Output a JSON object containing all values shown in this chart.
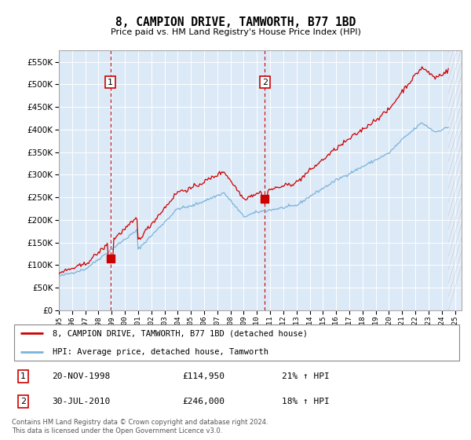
{
  "title": "8, CAMPION DRIVE, TAMWORTH, B77 1BD",
  "subtitle": "Price paid vs. HM Land Registry's House Price Index (HPI)",
  "ylim": [
    0,
    575000
  ],
  "yticks": [
    0,
    50000,
    100000,
    150000,
    200000,
    250000,
    300000,
    350000,
    400000,
    450000,
    500000,
    550000
  ],
  "background_color": "#ffffff",
  "plot_bg_color": "#dce9f7",
  "grid_color": "#ffffff",
  "red_line_color": "#cc0000",
  "blue_line_color": "#7ab3d9",
  "annotation1": {
    "x_year": 1998.9,
    "y": 114950,
    "label": "1"
  },
  "annotation2": {
    "x_year": 2010.6,
    "y": 246000,
    "label": "2"
  },
  "vline1_year": 1998.9,
  "vline2_year": 2010.6,
  "legend_label_red": "8, CAMPION DRIVE, TAMWORTH, B77 1BD (detached house)",
  "legend_label_blue": "HPI: Average price, detached house, Tamworth",
  "table_row1": [
    "1",
    "20-NOV-1998",
    "£114,950",
    "21% ↑ HPI"
  ],
  "table_row2": [
    "2",
    "30-JUL-2010",
    "£246,000",
    "18% ↑ HPI"
  ],
  "footnote": "Contains HM Land Registry data © Crown copyright and database right 2024.\nThis data is licensed under the Open Government Licence v3.0.",
  "xlim": [
    1995.0,
    2025.5
  ],
  "xtick_start": 1995,
  "xtick_end": 2025,
  "hatch_start": 2024.5
}
